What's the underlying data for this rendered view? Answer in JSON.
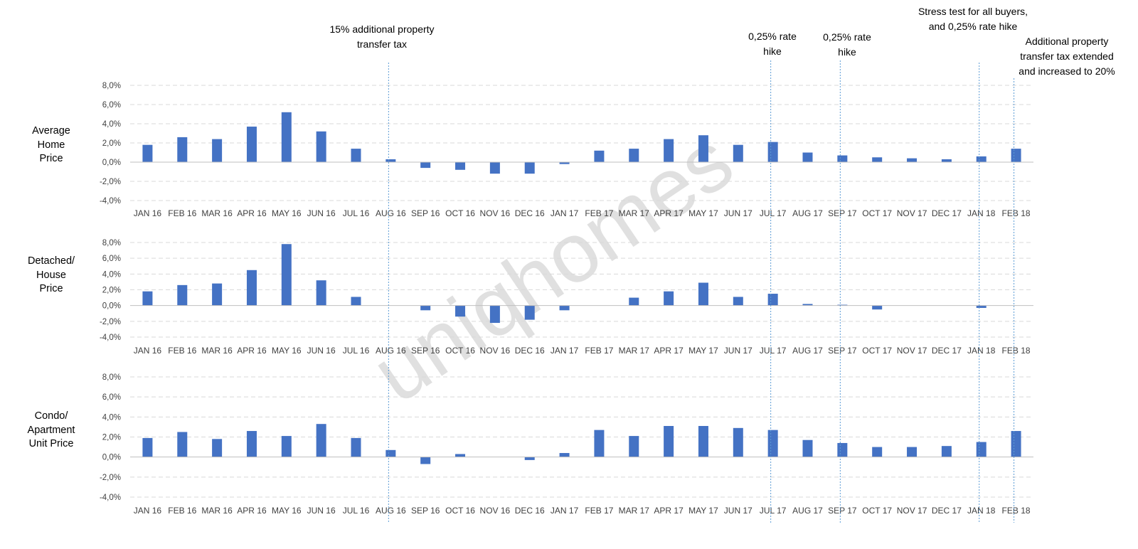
{
  "chart_data": [
    {
      "type": "bar",
      "label_lines": [
        "Average",
        "Home",
        "Price"
      ],
      "categories": [
        "JAN 16",
        "FEB 16",
        "MAR 16",
        "APR 16",
        "MAY 16",
        "JUN 16",
        "JUL 16",
        "AUG 16",
        "SEP 16",
        "OCT 16",
        "NOV 16",
        "DEC 16",
        "JAN 17",
        "FEB 17",
        "MAR 17",
        "APR 17",
        "MAY 17",
        "JUN 17",
        "JUL 17",
        "AUG 17",
        "SEP 17",
        "OCT 17",
        "NOV 17",
        "DEC 17",
        "JAN 18",
        "FEB 18"
      ],
      "values": [
        1.8,
        2.6,
        2.4,
        3.7,
        5.2,
        3.2,
        1.4,
        0.3,
        -0.6,
        -0.8,
        -1.2,
        -1.2,
        -0.2,
        1.2,
        1.4,
        2.4,
        2.8,
        1.8,
        2.1,
        1.0,
        0.7,
        0.5,
        0.4,
        0.3,
        0.6,
        1.4
      ],
      "ylim": [
        -4,
        8
      ],
      "yticks": [
        "8,0%",
        "6,0%",
        "4,0%",
        "2,0%",
        "0,0%",
        "-2,0%",
        "-4,0%"
      ],
      "grid": true
    },
    {
      "type": "bar",
      "label_lines": [
        "Detached/",
        "House",
        "Price"
      ],
      "categories": [
        "JAN 16",
        "FEB 16",
        "MAR 16",
        "APR 16",
        "MAY 16",
        "JUN 16",
        "JUL 16",
        "AUG 16",
        "SEP 16",
        "OCT 16",
        "NOV 16",
        "DEC 16",
        "JAN 17",
        "FEB 17",
        "MAR 17",
        "APR 17",
        "MAY 17",
        "JUN 17",
        "JUL 17",
        "AUG 17",
        "SEP 17",
        "OCT 17",
        "NOV 17",
        "DEC 17",
        "JAN 18",
        "FEB 18"
      ],
      "values": [
        1.8,
        2.6,
        2.8,
        4.5,
        7.8,
        3.2,
        1.1,
        0.0,
        -0.6,
        -1.4,
        -2.2,
        -1.8,
        -0.6,
        0.0,
        1.0,
        1.8,
        2.9,
        1.1,
        1.5,
        0.2,
        0.1,
        -0.5,
        0.0,
        0.0,
        -0.3,
        0.0
      ],
      "ylim": [
        -4,
        8
      ],
      "yticks": [
        "8,0%",
        "6,0%",
        "4,0%",
        "2,0%",
        "0,0%",
        "-2,0%",
        "-4,0%"
      ],
      "grid": true
    },
    {
      "type": "bar",
      "label_lines": [
        "Condo/",
        "Apartment",
        "Unit Price"
      ],
      "categories": [
        "JAN 16",
        "FEB 16",
        "MAR 16",
        "APR 16",
        "MAY 16",
        "JUN 16",
        "JUL 16",
        "AUG 16",
        "SEP 16",
        "OCT 16",
        "NOV 16",
        "DEC 16",
        "JAN 17",
        "FEB 17",
        "MAR 17",
        "APR 17",
        "MAY 17",
        "JUN 17",
        "JUL 17",
        "AUG 17",
        "SEP 17",
        "OCT 17",
        "NOV 17",
        "DEC 17",
        "JAN 18",
        "FEB 18"
      ],
      "values": [
        1.9,
        2.5,
        1.8,
        2.6,
        2.1,
        3.3,
        1.9,
        0.7,
        -0.7,
        0.3,
        0.0,
        -0.3,
        0.4,
        2.7,
        2.1,
        3.1,
        3.1,
        2.9,
        2.7,
        1.7,
        1.4,
        1.0,
        1.0,
        1.1,
        1.5,
        2.6
      ],
      "ylim": [
        -4,
        8
      ],
      "yticks": [
        "8,0%",
        "6,0%",
        "4,0%",
        "2,0%",
        "0,0%",
        "-2,0%",
        "-4,0%"
      ],
      "grid": true
    }
  ],
  "annotations": [
    {
      "category": "AUG 16",
      "lines": [
        "15% additional property",
        "transfer tax"
      ]
    },
    {
      "category": "JUL 17",
      "lines": [
        "0,25% rate",
        "hike"
      ]
    },
    {
      "category": "SEP 17",
      "lines": [
        "0,25% rate",
        "hike"
      ]
    },
    {
      "category": "JAN 18",
      "lines": [
        "Stress test for all buyers,",
        "and 0,25% rate hike"
      ]
    },
    {
      "category": "FEB 18",
      "lines": [
        "Additional property",
        "transfer tax extended",
        "and increased to 20%"
      ]
    }
  ],
  "watermark": "uniqhomes",
  "colors": {
    "bar": "#4472c4",
    "grid": "#d9d9d9",
    "axis": "#bfbfbf",
    "event_line": "#5b9bd5",
    "watermark": "#e0e0e0"
  }
}
